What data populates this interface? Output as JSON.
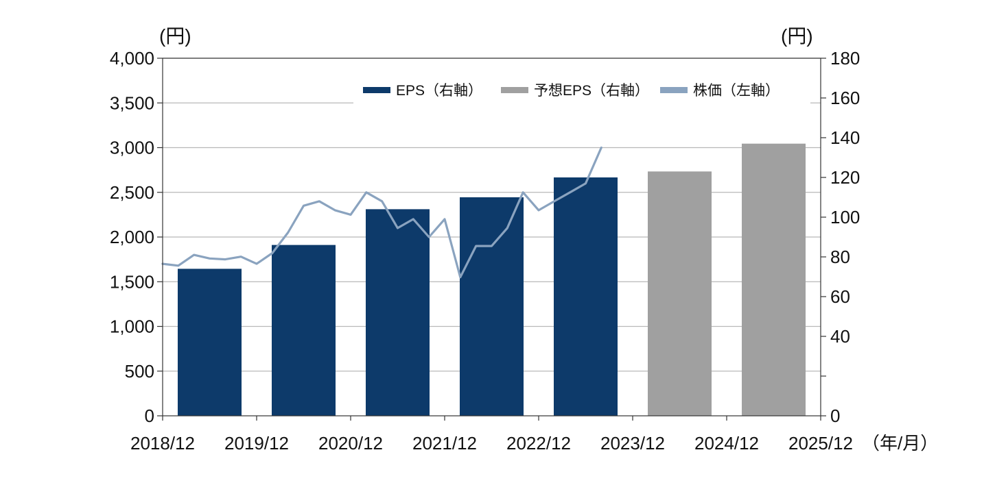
{
  "chart_data": {
    "type": "bar",
    "x_axis": {
      "tick_labels": [
        "2018/12",
        "2019/12",
        "2020/12",
        "2021/12",
        "2022/12",
        "2023/12",
        "2024/12",
        "2025/12"
      ],
      "unit_label": "（年/月）"
    },
    "y_left": {
      "unit_label": "(円)",
      "ylim": [
        0,
        4000
      ],
      "ticks": [
        0,
        500,
        1000,
        1500,
        2000,
        2500,
        3000,
        3500,
        4000
      ],
      "tick_labels": [
        "0",
        "500",
        "1,000",
        "1,500",
        "2,000",
        "2,500",
        "3,000",
        "3,500",
        "4,000"
      ]
    },
    "y_right": {
      "unit_label": "(円)",
      "ylim": [
        0,
        180
      ],
      "ticks": [
        0,
        20,
        40,
        60,
        80,
        100,
        120,
        140,
        160,
        180
      ],
      "tick_labels": [
        "0",
        "",
        "40",
        "60",
        "80",
        "100",
        "120",
        "140",
        "160",
        "180"
      ]
    },
    "categories": [
      "2019",
      "2020",
      "2021",
      "2022",
      "2023",
      "2024",
      "2025"
    ],
    "series": [
      {
        "name": "EPS（右軸）",
        "kind": "bar",
        "axis": "right",
        "color": "#0d3a6a",
        "values": [
          74,
          86,
          104,
          110,
          120,
          null,
          null
        ]
      },
      {
        "name": "予想EPS（右軸）",
        "kind": "bar",
        "axis": "right",
        "color": "#a0a0a0",
        "values": [
          null,
          null,
          null,
          null,
          null,
          123,
          137
        ]
      },
      {
        "name": "株価（左軸）",
        "kind": "line",
        "axis": "left",
        "color": "#8aa3bf",
        "x": [
          "2018/12",
          "2019/02",
          "2019/04",
          "2019/06",
          "2019/08",
          "2019/10",
          "2019/12",
          "2020/02",
          "2020/04",
          "2020/06",
          "2020/08",
          "2020/10",
          "2020/12",
          "2021/02",
          "2021/04",
          "2021/06",
          "2021/08",
          "2021/10",
          "2021/12",
          "2022/02",
          "2022/04",
          "2022/06",
          "2022/08",
          "2022/10",
          "2022/12",
          "2023/02",
          "2023/04",
          "2023/06",
          "2023/08"
        ],
        "values": [
          1700,
          1680,
          1800,
          1760,
          1750,
          1780,
          1700,
          1820,
          2050,
          2350,
          2400,
          2300,
          2250,
          2500,
          2400,
          2100,
          2200,
          2000,
          2200,
          1550,
          1900,
          1900,
          2100,
          2500,
          2300,
          2400,
          2500,
          2600,
          3000
        ]
      }
    ],
    "legend": {
      "position": "top-right"
    },
    "grid": "horizontal"
  }
}
